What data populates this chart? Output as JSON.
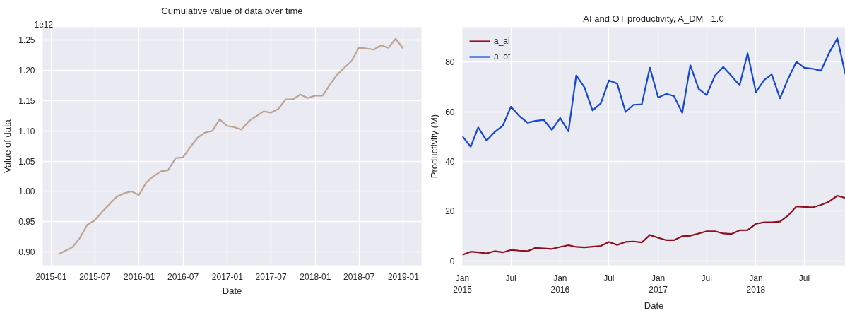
{
  "chart_data": [
    {
      "type": "line",
      "title": "Cumulative value of data over time",
      "xlabel": "Date",
      "ylabel": "Value of data",
      "annotations": [
        "1e12"
      ],
      "color": "#bca391",
      "x": [
        "2015-01-31",
        "2015-02-28",
        "2015-03-31",
        "2015-04-30",
        "2015-05-31",
        "2015-06-30",
        "2015-07-31",
        "2015-08-31",
        "2015-09-30",
        "2015-10-31",
        "2015-11-30",
        "2015-12-31",
        "2016-01-31",
        "2016-02-29",
        "2016-03-31",
        "2016-04-30",
        "2016-05-31",
        "2016-06-30",
        "2016-07-31",
        "2016-08-31",
        "2016-09-30",
        "2016-10-31",
        "2016-11-30",
        "2016-12-31",
        "2017-01-31",
        "2017-02-28",
        "2017-03-31",
        "2017-04-30",
        "2017-05-31",
        "2017-06-30",
        "2017-07-31",
        "2017-08-31",
        "2017-09-30",
        "2017-10-31",
        "2017-11-30",
        "2017-12-31",
        "2018-01-31",
        "2018-02-28",
        "2018-03-31",
        "2018-04-30",
        "2018-05-31",
        "2018-06-30",
        "2018-07-31",
        "2018-08-31",
        "2018-09-30",
        "2018-10-31",
        "2018-11-30",
        "2018-12-31"
      ],
      "values": [
        0.896,
        0.902,
        0.908,
        0.923,
        0.945,
        0.952,
        0.966,
        0.979,
        0.991,
        0.997,
        1.0,
        0.994,
        1.015,
        1.025,
        1.033,
        1.035,
        1.055,
        1.056,
        1.073,
        1.089,
        1.097,
        1.1,
        1.119,
        1.108,
        1.106,
        1.102,
        1.116,
        1.124,
        1.132,
        1.13,
        1.136,
        1.152,
        1.152,
        1.16,
        1.154,
        1.158,
        1.158,
        1.175,
        1.192,
        1.204,
        1.215,
        1.237,
        1.236,
        1.234,
        1.241,
        1.237,
        1.252,
        1.236
      ],
      "xlim": [
        "2014-11-27",
        "2019-03-17"
      ],
      "xticks": [
        "2015-01",
        "2015-07",
        "2016-01",
        "2016-07",
        "2017-01",
        "2017-07",
        "2018-01",
        "2018-07",
        "2019-01"
      ],
      "ylim": [
        0.878,
        1.271
      ],
      "yticks": [
        {
          "value": 0.9,
          "label": "0.90"
        },
        {
          "value": 0.95,
          "label": "0.95"
        },
        {
          "value": 1.0,
          "label": "1.00"
        },
        {
          "value": 1.05,
          "label": "1.05"
        },
        {
          "value": 1.1,
          "label": "1.10"
        },
        {
          "value": 1.15,
          "label": "1.15"
        },
        {
          "value": 1.2,
          "label": "1.20"
        },
        {
          "value": 1.25,
          "label": "1.25"
        }
      ],
      "grid": true,
      "line_style": "solid"
    },
    {
      "type": "line",
      "title": "AI and OT productivity, A_DM =1.0",
      "xlabel": "Date",
      "ylabel": "Productivity (M)",
      "legend": "top left",
      "grid": true,
      "line_style": "solid",
      "x": [
        "2015-01",
        "2015-02",
        "2015-03",
        "2015-04",
        "2015-05",
        "2015-06",
        "2015-07",
        "2015-08",
        "2015-09",
        "2015-10",
        "2015-11",
        "2015-12",
        "2016-01",
        "2016-02",
        "2016-03",
        "2016-04",
        "2016-05",
        "2016-06",
        "2016-07",
        "2016-08",
        "2016-09",
        "2016-10",
        "2016-11",
        "2016-12",
        "2017-01",
        "2017-02",
        "2017-03",
        "2017-04",
        "2017-05",
        "2017-06",
        "2017-07",
        "2017-08",
        "2017-09",
        "2017-10",
        "2017-11",
        "2017-12",
        "2018-01",
        "2018-02",
        "2018-03",
        "2018-04",
        "2018-05",
        "2018-06",
        "2018-07",
        "2018-08",
        "2018-09",
        "2018-10",
        "2018-11",
        "2018-12"
      ],
      "series": [
        {
          "name": "a_ai",
          "color": "#8e1020",
          "values": [
            2.4,
            3.7,
            3.4,
            3.0,
            3.9,
            3.4,
            4.4,
            4.1,
            3.9,
            5.2,
            5.0,
            4.8,
            5.6,
            6.3,
            5.6,
            5.4,
            5.7,
            6.0,
            7.6,
            6.4,
            7.6,
            7.8,
            7.4,
            10.4,
            9.3,
            8.3,
            8.3,
            9.9,
            10.1,
            11.0,
            11.9,
            11.9,
            11.0,
            10.8,
            12.3,
            12.4,
            14.9,
            15.5,
            15.5,
            15.8,
            18.2,
            21.9,
            21.7,
            21.5,
            22.5,
            23.8,
            26.2,
            25.3
          ]
        },
        {
          "name": "a_ot",
          "color": "#1446d8",
          "values": [
            50.1,
            45.9,
            53.7,
            48.4,
            51.8,
            54.4,
            62.0,
            58.3,
            55.6,
            56.3,
            56.7,
            52.7,
            57.5,
            52.1,
            74.6,
            69.7,
            60.5,
            63.4,
            72.6,
            71.3,
            59.9,
            62.8,
            63.0,
            77.7,
            65.7,
            67.2,
            66.3,
            59.5,
            78.7,
            69.2,
            66.7,
            74.5,
            78.0,
            74.5,
            70.6,
            83.5,
            67.9,
            72.8,
            75.0,
            65.4,
            73.2,
            80.1,
            77.7,
            77.3,
            76.5,
            83.6,
            89.5,
            75.1
          ]
        }
      ],
      "xlim": [
        "2015-01",
        "2018-12"
      ],
      "xticks": [
        {
          "value": "2015-01",
          "label": "Jan\n2015"
        },
        {
          "value": "2015-07",
          "label": "Jul"
        },
        {
          "value": "2016-01",
          "label": "Jan\n2016"
        },
        {
          "value": "2016-07",
          "label": "Jul"
        },
        {
          "value": "2017-01",
          "label": "Jan\n2017"
        },
        {
          "value": "2017-07",
          "label": "Jul"
        },
        {
          "value": "2018-01",
          "label": "Jan\n2018"
        },
        {
          "value": "2018-07",
          "label": "Jul"
        }
      ],
      "ylim": [
        -1.8,
        94
      ],
      "yticks": [
        0,
        20,
        40,
        60,
        80
      ]
    }
  ]
}
